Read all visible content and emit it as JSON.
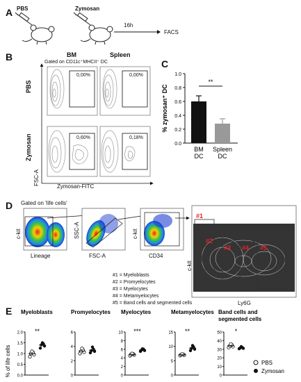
{
  "panels": {
    "a": "A",
    "b": "B",
    "c": "C",
    "d": "D",
    "e": "E"
  },
  "panel_a": {
    "pbs": "PBS",
    "zymosan": "Zymosan",
    "time": "16h",
    "facs": "FACS"
  },
  "panel_b": {
    "col_bm": "BM",
    "col_spleen": "Spleen",
    "gated": "Gated on CD11c⁺MHCII⁺ DC",
    "row_pbs": "PBS",
    "row_zymosan": "Zymosan",
    "yaxis": "FSC-A",
    "xaxis": "Zymosan-FITC",
    "gates": [
      "0,00%",
      "0,00%",
      "0,60%",
      "0,18%"
    ]
  },
  "panel_d": {
    "gated": "Gated on 'life cells'",
    "plot1_y": "c-kit",
    "plot1_x": "Lineage",
    "plot2_y": "SSC-A",
    "plot2_x": "FSC-A",
    "plot3_y": "c-kit",
    "plot3_x": "CD34",
    "big_y": "c-kit",
    "big_x": "Ly6G",
    "gate_labels": [
      "#1",
      "#2",
      "#3",
      "#4",
      "#5"
    ],
    "legend": [
      "#1 = Myeloblasts",
      "#2 = Promyelocytes",
      "#3 = Myelocytes",
      "#4 = Metamyelocytes",
      "#5 = Band cells and segmented cells"
    ]
  },
  "colors": {
    "bm_bar": "#111111",
    "spleen_bar": "#999999",
    "gate_red": "#e8202a",
    "flow_blue": "#1f3fd1"
  },
  "chart_data": [
    {
      "type": "bar",
      "categories": [
        "BM\nDC",
        "Spleen\nDC"
      ],
      "category_lines": [
        [
          "BM",
          "DC"
        ],
        [
          "Spleen",
          "DC"
        ]
      ],
      "values": [
        0.6,
        0.28
      ],
      "errors": [
        0.08,
        0.07
      ],
      "ylabel": "% zymosan⁺ DC",
      "ylim": [
        0,
        1.0
      ],
      "yticks": [
        "0.0",
        "0.2",
        "0.4",
        "0.6",
        "0.8",
        "1.0"
      ],
      "significance": "**"
    },
    {
      "type": "scatter",
      "ylabel": "% of life cells",
      "legend": [
        "PBS",
        "Zymosan"
      ],
      "panels": [
        {
          "title": "Myeloblasts",
          "ylim": [
            0,
            2.0
          ],
          "yticks": [
            "0.0",
            "0.5",
            "1.0",
            "1.5",
            "2.0"
          ],
          "sig": "**",
          "pbs": [
            0.85,
            0.95,
            1.0,
            1.05,
            1.1
          ],
          "zymosan": [
            1.25,
            1.35,
            1.4,
            1.45,
            1.5
          ]
        },
        {
          "title": "Promyelocytes",
          "ylim": [
            0,
            6
          ],
          "yticks": [
            "0",
            "2",
            "4",
            "6"
          ],
          "sig": "",
          "pbs": [
            3.0,
            3.2,
            3.3,
            3.5,
            3.7
          ],
          "zymosan": [
            3.1,
            3.3,
            3.4,
            3.6,
            3.9
          ]
        },
        {
          "title": "Myelocytes",
          "ylim": [
            0,
            10
          ],
          "yticks": [
            "0",
            "2",
            "4",
            "6",
            "8",
            "10"
          ],
          "sig": "***",
          "pbs": [
            4.5,
            4.7,
            4.8,
            4.9,
            5.0
          ],
          "zymosan": [
            5.5,
            5.7,
            5.8,
            6.0,
            6.1
          ]
        },
        {
          "title": "Metamyelocytes",
          "ylim": [
            0,
            15
          ],
          "yticks": [
            "0",
            "5",
            "10",
            "15"
          ],
          "sig": "**",
          "pbs": [
            6.8,
            7.0,
            7.1,
            7.2,
            7.3
          ],
          "zymosan": [
            8.5,
            9.0,
            9.3,
            9.8,
            10.3
          ]
        },
        {
          "title": "Band cells and segmented cells",
          "ylim": [
            0,
            50
          ],
          "yticks": [
            "0",
            "10",
            "20",
            "30",
            "40",
            "50"
          ],
          "sig": "*",
          "pbs": [
            32.0,
            33.0,
            34.0,
            35.0,
            36.0
          ],
          "zymosan": [
            30.5,
            31.0,
            31.5,
            32.0,
            33.0
          ]
        }
      ]
    }
  ]
}
